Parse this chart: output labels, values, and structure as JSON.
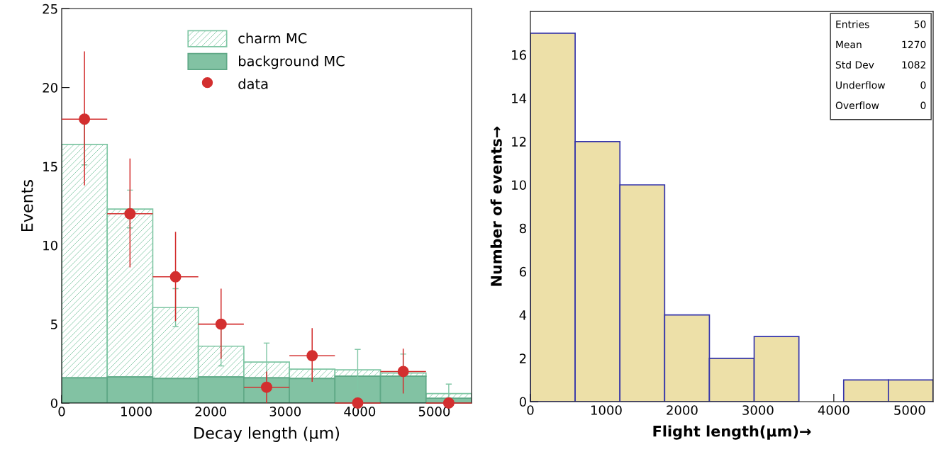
{
  "chart_data": [
    {
      "type": "bar",
      "xlabel": "Decay length (μm)",
      "ylabel": "Events",
      "stacked": true,
      "x": [
        305.6,
        916.7,
        1527.8,
        2138.9,
        2750,
        3361.1,
        3972.2,
        4583.3,
        5194.4
      ],
      "series": [
        {
          "name": "background MC",
          "color": "#82c2a3",
          "values": [
            1.6,
            1.65,
            1.55,
            1.65,
            1.6,
            1.55,
            1.7,
            1.7,
            0.3
          ]
        },
        {
          "name": "charm MC",
          "color": "#7fc6a4",
          "values": [
            14.8,
            10.65,
            4.5,
            1.95,
            1.0,
            0.6,
            0.4,
            0.2,
            0.3
          ],
          "errors": [
            1.3,
            1.2,
            1.2,
            1.25,
            1.2,
            null,
            1.3,
            1.2,
            0.6
          ]
        },
        {
          "name": "data",
          "type": "scatter",
          "color": "#d32f2f",
          "x": [
            305.6,
            916.7,
            1527.8,
            2138.9,
            2750,
            3361.1,
            3972.2,
            4583.3,
            5194.4
          ],
          "values": [
            18,
            12,
            8,
            5,
            1,
            3,
            0,
            2,
            0
          ],
          "errors": [
            [
              13.8,
              22.3
            ],
            [
              8.6,
              15.5
            ],
            [
              5.2,
              10.85
            ],
            [
              2.8,
              7.25
            ],
            [
              0,
              2.0
            ],
            [
              1.35,
              4.75
            ],
            null,
            [
              0.6,
              3.45
            ],
            null
          ],
          "xerrors": [
            305.5,
            305.5,
            305.5,
            305.5,
            305.5,
            305.5,
            305.5,
            305.5,
            305.5
          ]
        }
      ],
      "xlim": [
        0,
        5500
      ],
      "xticks": [
        0,
        1000,
        2000,
        3000,
        4000,
        5000
      ],
      "ylim": [
        0,
        25
      ],
      "yticks": [
        0,
        5,
        10,
        15,
        20,
        25
      ],
      "legend": "top",
      "grid": false,
      "marker": "circle"
    },
    {
      "type": "histogram",
      "xlabel": "Flight length(μm)→",
      "ylabel": "Number of events→",
      "bins": [
        0,
        590,
        1180,
        1770,
        2360,
        2950,
        3540,
        4130,
        4720,
        5310
      ],
      "values": [
        17,
        12,
        10,
        4,
        2,
        3,
        0,
        1,
        1
      ],
      "color": "#ede0a8",
      "xlim": [
        0,
        5310
      ],
      "xticks": [
        0,
        1000,
        2000,
        3000,
        4000,
        5000
      ],
      "ylim": [
        0,
        18
      ],
      "yticks": [
        0,
        2,
        4,
        6,
        8,
        10,
        12,
        14,
        16
      ],
      "grid": false,
      "legend": false,
      "annotations": [
        "Entries",
        "50",
        "Mean",
        "1270",
        "Std Dev",
        "1082",
        "Underflow",
        "0",
        "Overflow",
        "0"
      ]
    }
  ]
}
